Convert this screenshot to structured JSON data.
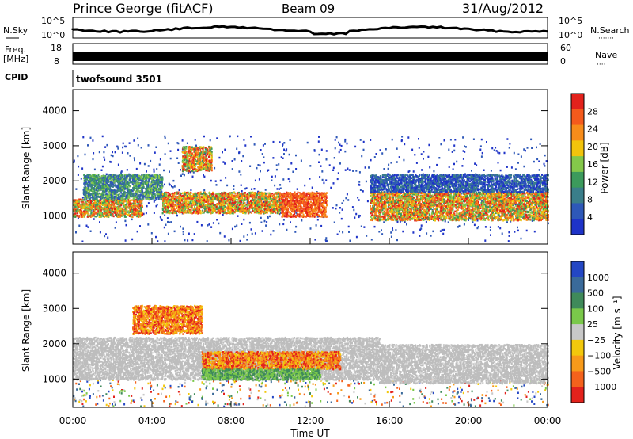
{
  "header": {
    "station": "Prince George (fitACF)",
    "beam": "Beam 09",
    "date": "31/Aug/2012"
  },
  "aux_panels": {
    "noise": {
      "left_label": "N.Sky",
      "right_label": "N.Search",
      "right_dots": "·······",
      "left_ticks": [
        "10^5",
        "10^0"
      ],
      "right_ticks": [
        "10^5",
        "10^0"
      ]
    },
    "freq": {
      "left_label_1": "Freq.",
      "left_label_2": "[MHz]",
      "right_label": "Nave",
      "right_dots": "····",
      "left_ticks": [
        "18",
        "8"
      ],
      "right_ticks": [
        "60",
        "0"
      ]
    },
    "cpid": {
      "label": "CPID",
      "value": "twofsound 3501"
    }
  },
  "colors": {
    "power_scale": [
      "#1e33c8",
      "#2e58b8",
      "#3a7e8a",
      "#3c9a5c",
      "#84c84a",
      "#f2c40c",
      "#f78c1a",
      "#f45a1c",
      "#e3221c"
    ],
    "velocity_scale": [
      "#2447c4",
      "#3a6a9a",
      "#3f8a5a",
      "#7ac84a",
      "#c8c8c8",
      "#f2c80c",
      "#f79a1a",
      "#f4621c",
      "#e3221c"
    ],
    "ground_scatter": "#bdbdbd"
  },
  "chart_data": [
    {
      "type": "heatmap",
      "name": "power",
      "ylabel": "Slant Range [km]",
      "xlabel": "",
      "xlim": [
        0,
        24
      ],
      "ylim": [
        200,
        4600
      ],
      "yticks": [
        "1000",
        "2000",
        "3000",
        "4000"
      ],
      "xticks": [
        "00:00",
        "04:00",
        "08:00",
        "12:00",
        "16:00",
        "20:00",
        "00:00"
      ],
      "colorbar": {
        "label": "Power [dB]",
        "range": [
          0,
          30
        ],
        "ticks": [
          "4",
          "8",
          "12",
          "16",
          "20",
          "24",
          "28"
        ]
      },
      "bands": [
        {
          "t": [
            0.0,
            3.5
          ],
          "r": [
            1000,
            1500
          ],
          "level": "high"
        },
        {
          "t": [
            0.5,
            4.5
          ],
          "r": [
            1500,
            2200
          ],
          "level": "mid"
        },
        {
          "t": [
            4.5,
            10.5
          ],
          "r": [
            1100,
            1700
          ],
          "level": "high"
        },
        {
          "t": [
            5.5,
            7.0
          ],
          "r": [
            2300,
            3000
          ],
          "level": "high"
        },
        {
          "t": [
            10.5,
            12.8
          ],
          "r": [
            1000,
            1700
          ],
          "level": "max"
        },
        {
          "t": [
            15.0,
            24.0
          ],
          "r": [
            900,
            1700
          ],
          "level": "high"
        },
        {
          "t": [
            15.0,
            24.0
          ],
          "r": [
            1700,
            2200
          ],
          "level": "low"
        }
      ]
    },
    {
      "type": "heatmap",
      "name": "velocity",
      "ylabel": "Slant Range [km]",
      "xlabel": "Time UT",
      "xlim": [
        0,
        24
      ],
      "ylim": [
        200,
        4600
      ],
      "yticks": [
        "1000",
        "2000",
        "3000",
        "4000"
      ],
      "xticks": [
        "00:00",
        "04:00",
        "08:00",
        "12:00",
        "16:00",
        "20:00",
        "00:00"
      ],
      "colorbar": {
        "label": "Velocity [m s⁻¹]",
        "ticks": [
          "1000",
          "500",
          "100",
          "25",
          "−25",
          "−100",
          "−500",
          "−1000"
        ]
      },
      "bands": [
        {
          "t": [
            0.0,
            15.5
          ],
          "r": [
            1000,
            2200
          ],
          "kind": "ground"
        },
        {
          "t": [
            15.5,
            24.0
          ],
          "r": [
            900,
            2000
          ],
          "kind": "ground"
        },
        {
          "t": [
            3.0,
            6.5
          ],
          "r": [
            2300,
            3100
          ],
          "kind": "negative"
        },
        {
          "t": [
            6.5,
            13.5
          ],
          "r": [
            1300,
            1800
          ],
          "kind": "negative"
        },
        {
          "t": [
            6.5,
            12.5
          ],
          "r": [
            1000,
            1300
          ],
          "kind": "positive"
        }
      ]
    }
  ]
}
